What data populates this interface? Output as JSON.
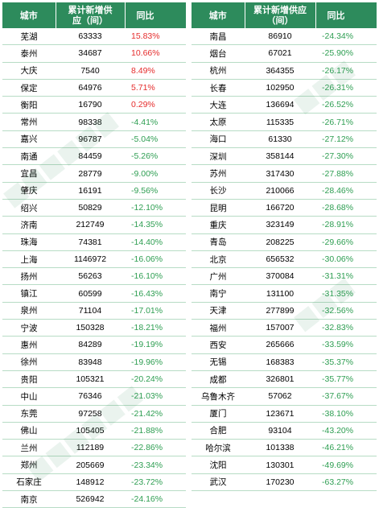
{
  "headers": {
    "city": "城市",
    "supply": "累计新增供应（间）",
    "yoy": "同比"
  },
  "left_rows": [
    {
      "city": "芜湖",
      "supply": "63333",
      "yoy": "15.83%"
    },
    {
      "city": "泰州",
      "supply": "34687",
      "yoy": "10.66%"
    },
    {
      "city": "大庆",
      "supply": "7540",
      "yoy": "8.49%"
    },
    {
      "city": "保定",
      "supply": "64976",
      "yoy": "5.71%"
    },
    {
      "city": "衡阳",
      "supply": "16790",
      "yoy": "0.29%"
    },
    {
      "city": "常州",
      "supply": "98338",
      "yoy": "-4.41%"
    },
    {
      "city": "嘉兴",
      "supply": "96787",
      "yoy": "-5.04%"
    },
    {
      "city": "南通",
      "supply": "84459",
      "yoy": "-5.26%"
    },
    {
      "city": "宜昌",
      "supply": "28779",
      "yoy": "-9.00%"
    },
    {
      "city": "肇庆",
      "supply": "16191",
      "yoy": "-9.56%"
    },
    {
      "city": "绍兴",
      "supply": "50829",
      "yoy": "-12.10%"
    },
    {
      "city": "济南",
      "supply": "212749",
      "yoy": "-14.35%"
    },
    {
      "city": "珠海",
      "supply": "74381",
      "yoy": "-14.40%"
    },
    {
      "city": "上海",
      "supply": "1146972",
      "yoy": "-16.06%"
    },
    {
      "city": "扬州",
      "supply": "56263",
      "yoy": "-16.10%"
    },
    {
      "city": "镇江",
      "supply": "60599",
      "yoy": "-16.43%"
    },
    {
      "city": "泉州",
      "supply": "71104",
      "yoy": "-17.01%"
    },
    {
      "city": "宁波",
      "supply": "150328",
      "yoy": "-18.21%"
    },
    {
      "city": "惠州",
      "supply": "84289",
      "yoy": "-19.19%"
    },
    {
      "city": "徐州",
      "supply": "83948",
      "yoy": "-19.96%"
    },
    {
      "city": "贵阳",
      "supply": "105321",
      "yoy": "-20.24%"
    },
    {
      "city": "中山",
      "supply": "76346",
      "yoy": "-21.03%"
    },
    {
      "city": "东莞",
      "supply": "97258",
      "yoy": "-21.42%"
    },
    {
      "city": "佛山",
      "supply": "105405",
      "yoy": "-21.88%"
    },
    {
      "city": "兰州",
      "supply": "112189",
      "yoy": "-22.86%"
    },
    {
      "city": "郑州",
      "supply": "205669",
      "yoy": "-23.34%"
    },
    {
      "city": "石家庄",
      "supply": "148912",
      "yoy": "-23.72%"
    },
    {
      "city": "南京",
      "supply": "526942",
      "yoy": "-24.16%"
    }
  ],
  "right_rows": [
    {
      "city": "南昌",
      "supply": "86910",
      "yoy": "-24.34%"
    },
    {
      "city": "烟台",
      "supply": "67021",
      "yoy": "-25.90%"
    },
    {
      "city": "杭州",
      "supply": "364355",
      "yoy": "-26.17%"
    },
    {
      "city": "长春",
      "supply": "102950",
      "yoy": "-26.31%"
    },
    {
      "city": "大连",
      "supply": "136694",
      "yoy": "-26.52%"
    },
    {
      "city": "太原",
      "supply": "115335",
      "yoy": "-26.71%"
    },
    {
      "city": "海口",
      "supply": "61330",
      "yoy": "-27.12%"
    },
    {
      "city": "深圳",
      "supply": "358144",
      "yoy": "-27.30%"
    },
    {
      "city": "苏州",
      "supply": "317430",
      "yoy": "-27.88%"
    },
    {
      "city": "长沙",
      "supply": "210066",
      "yoy": "-28.46%"
    },
    {
      "city": "昆明",
      "supply": "166720",
      "yoy": "-28.68%"
    },
    {
      "city": "重庆",
      "supply": "323149",
      "yoy": "-28.91%"
    },
    {
      "city": "青岛",
      "supply": "208225",
      "yoy": "-29.66%"
    },
    {
      "city": "北京",
      "supply": "656532",
      "yoy": "-30.06%"
    },
    {
      "city": "广州",
      "supply": "370084",
      "yoy": "-31.31%"
    },
    {
      "city": "南宁",
      "supply": "131100",
      "yoy": "-31.35%"
    },
    {
      "city": "天津",
      "supply": "277899",
      "yoy": "-32.56%"
    },
    {
      "city": "福州",
      "supply": "157007",
      "yoy": "-32.83%"
    },
    {
      "city": "西安",
      "supply": "265666",
      "yoy": "-33.59%"
    },
    {
      "city": "无锡",
      "supply": "168383",
      "yoy": "-35.37%"
    },
    {
      "city": "成都",
      "supply": "326801",
      "yoy": "-35.77%"
    },
    {
      "city": "乌鲁木齐",
      "supply": "57062",
      "yoy": "-37.67%"
    },
    {
      "city": "厦门",
      "supply": "123671",
      "yoy": "-38.10%"
    },
    {
      "city": "合肥",
      "supply": "93104",
      "yoy": "-43.20%"
    },
    {
      "city": "哈尔滨",
      "supply": "101338",
      "yoy": "-46.21%"
    },
    {
      "city": "沈阳",
      "supply": "130301",
      "yoy": "-49.69%"
    },
    {
      "city": "武汉",
      "supply": "170230",
      "yoy": "-63.27%"
    }
  ],
  "colors": {
    "header_bg": "#2d8b5c",
    "positive": "#e52c2c",
    "negative": "#2e9e52",
    "row_line": "#b7dcc5"
  }
}
